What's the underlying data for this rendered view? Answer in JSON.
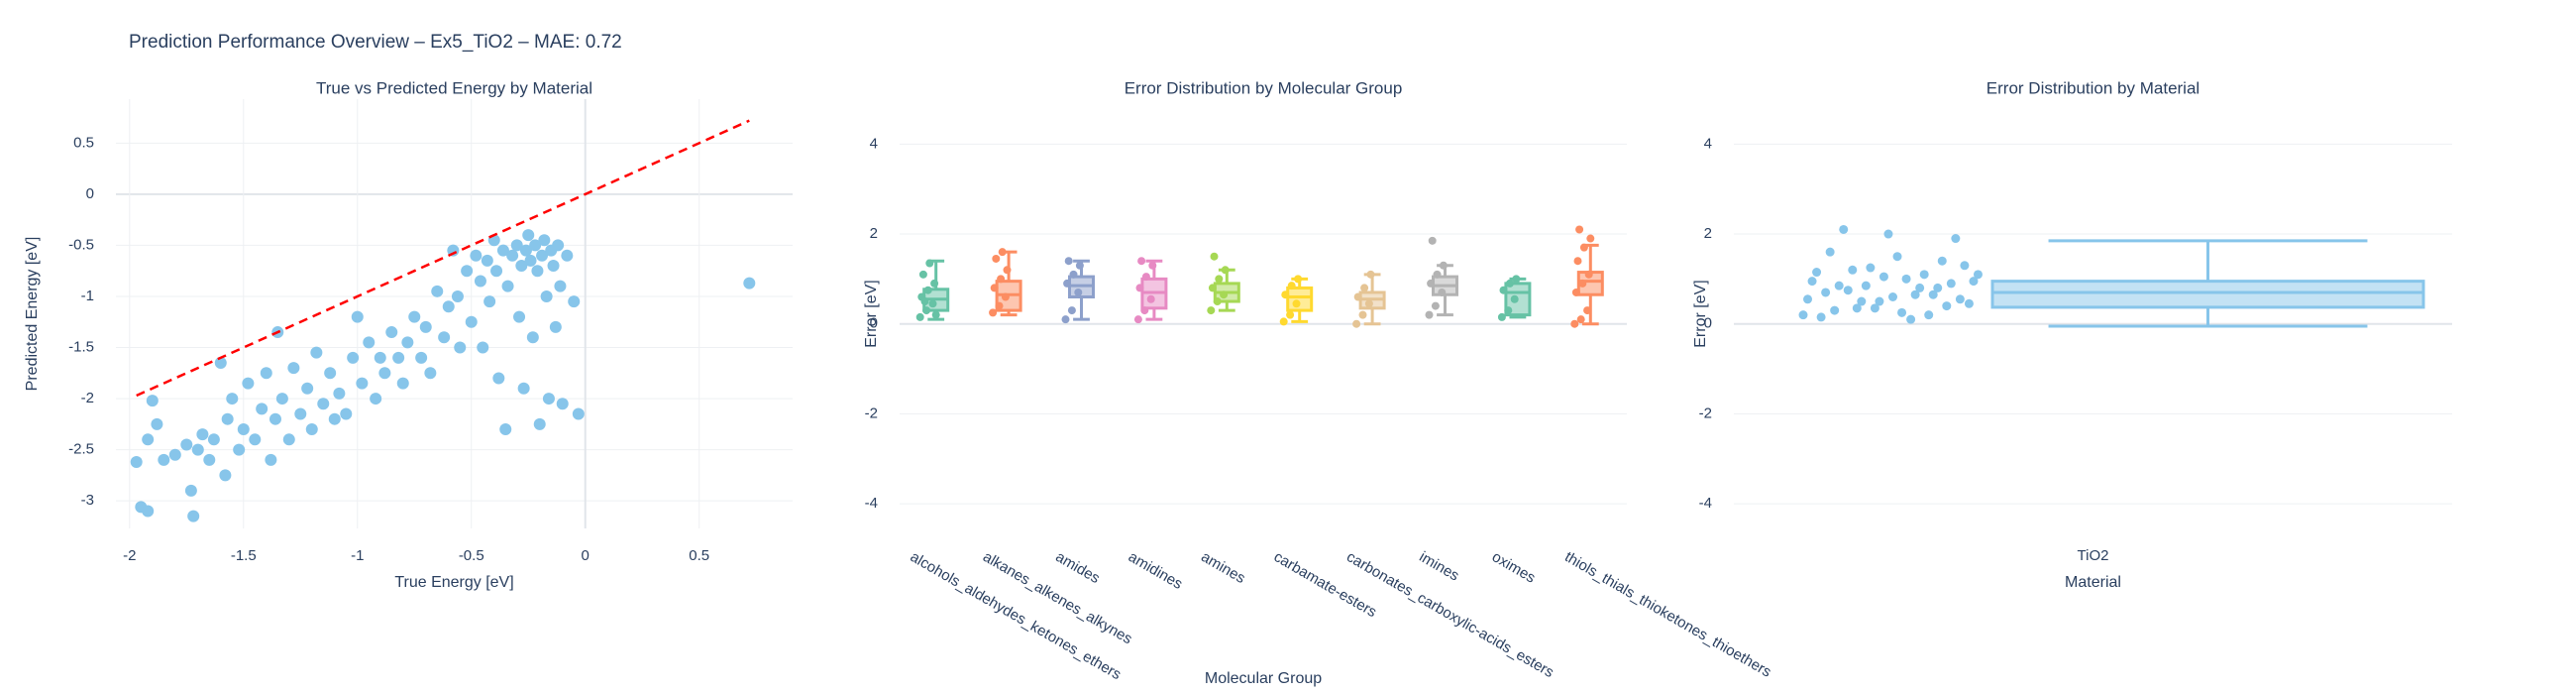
{
  "title": "Prediction Performance Overview – Ex5_TiO2 – MAE: 0.72",
  "chart_data": [
    {
      "type": "scatter",
      "title": "True vs Predicted Energy by Material",
      "x_label": "True Energy [eV]",
      "y_label": "Predicted Energy [eV]",
      "color": "#87c5ea",
      "x": [
        -1.97,
        -1.95,
        -1.92,
        -1.9,
        -1.88,
        -1.92,
        -1.85,
        -1.8,
        -1.75,
        -1.73,
        -1.72,
        -1.7,
        -1.68,
        -1.65,
        -1.63,
        -1.6,
        -1.58,
        -1.57,
        -1.55,
        -1.52,
        -1.5,
        -1.48,
        -1.45,
        -1.42,
        -1.4,
        -1.38,
        -1.36,
        -1.35,
        -1.33,
        -1.3,
        -1.28,
        -1.25,
        -1.22,
        -1.2,
        -1.18,
        -1.15,
        -1.12,
        -1.1,
        -1.08,
        -1.05,
        -1.02,
        -1.0,
        -0.98,
        -0.95,
        -0.92,
        -0.9,
        -0.88,
        -0.85,
        -0.82,
        -0.8,
        -0.78,
        -0.75,
        -0.72,
        -0.7,
        -0.68,
        -0.65,
        -0.62,
        -0.6,
        -0.58,
        -0.56,
        -0.55,
        -0.52,
        -0.5,
        -0.48,
        -0.46,
        -0.45,
        -0.43,
        -0.42,
        -0.4,
        -0.39,
        -0.38,
        -0.36,
        -0.35,
        -0.34,
        -0.32,
        -0.3,
        -0.29,
        -0.28,
        -0.27,
        -0.26,
        -0.25,
        -0.24,
        -0.23,
        -0.22,
        -0.21,
        -0.2,
        -0.19,
        -0.18,
        -0.17,
        -0.16,
        -0.15,
        -0.14,
        -0.13,
        -0.12,
        -0.11,
        -0.1,
        -0.08,
        -0.05,
        -0.03,
        0.72
      ],
      "y": [
        -2.62,
        -3.06,
        -3.1,
        -2.02,
        -2.25,
        -2.4,
        -2.6,
        -2.55,
        -2.45,
        -2.9,
        -3.15,
        -2.5,
        -2.35,
        -2.6,
        -2.4,
        -1.65,
        -2.75,
        -2.2,
        -2.0,
        -2.5,
        -2.3,
        -1.85,
        -2.4,
        -2.1,
        -1.75,
        -2.6,
        -2.2,
        -1.35,
        -2.0,
        -2.4,
        -1.7,
        -2.15,
        -1.9,
        -2.3,
        -1.55,
        -2.05,
        -1.75,
        -2.2,
        -1.95,
        -2.15,
        -1.6,
        -1.2,
        -1.85,
        -1.45,
        -2.0,
        -1.6,
        -1.75,
        -1.35,
        -1.6,
        -1.85,
        -1.45,
        -1.2,
        -1.6,
        -1.3,
        -1.75,
        -0.95,
        -1.4,
        -1.1,
        -0.55,
        -1.0,
        -1.5,
        -0.75,
        -1.25,
        -0.6,
        -0.85,
        -1.5,
        -0.65,
        -1.05,
        -0.45,
        -0.75,
        -1.8,
        -0.55,
        -2.3,
        -0.9,
        -0.6,
        -0.5,
        -1.2,
        -0.7,
        -1.9,
        -0.55,
        -0.4,
        -0.65,
        -1.4,
        -0.5,
        -0.75,
        -2.25,
        -0.6,
        -0.45,
        -1.0,
        -2.0,
        -0.55,
        -0.7,
        -1.3,
        -0.5,
        -0.9,
        -2.05,
        -0.6,
        -1.05,
        -2.15,
        -0.87
      ],
      "reference_line": {
        "x": [
          -1.97,
          0.72
        ],
        "y": [
          -1.97,
          0.72
        ],
        "color": "#ff0000"
      },
      "xlim": [
        -2.06,
        0.91
      ],
      "ylim": [
        -3.27,
        0.93
      ],
      "xticks": [
        -2,
        -1.5,
        -1,
        -0.5,
        0,
        0.5
      ],
      "yticks": [
        0.5,
        0,
        -0.5,
        -1,
        -1.5,
        -2,
        -2.5,
        -3
      ],
      "grid": true
    },
    {
      "type": "box",
      "title": "Error Distribution by Molecular Group",
      "x_label": "Molecular Group",
      "y_label": "Error [eV]",
      "ylim": [
        -4.55,
        5
      ],
      "yticks": [
        4,
        2,
        0,
        -2,
        -4
      ],
      "grid": true,
      "series": [
        {
          "name": "alcohols_aldehydes_ketones_ethers",
          "color": "#66c2a5",
          "lower": 0.1,
          "q1": 0.3,
          "median": 0.55,
          "q3": 0.77,
          "upper": 1.4,
          "points": [
            0.15,
            0.3,
            0.45,
            0.6,
            0.75,
            0.9,
            1.1,
            1.35,
            0.2,
            0.5
          ]
        },
        {
          "name": "alkanes_alkenes_alkynes",
          "color": "#fc8d62",
          "lower": 0.2,
          "q1": 0.3,
          "median": 0.65,
          "q3": 0.95,
          "upper": 1.6,
          "points": [
            0.25,
            0.4,
            0.6,
            0.8,
            1.0,
            1.2,
            1.45,
            1.6
          ]
        },
        {
          "name": "amides",
          "color": "#8da0cb",
          "lower": 0.1,
          "q1": 0.6,
          "median": 0.85,
          "q3": 1.05,
          "upper": 1.4,
          "points": [
            0.1,
            0.3,
            0.7,
            0.9,
            1.1,
            1.3,
            1.4
          ]
        },
        {
          "name": "amidines",
          "color": "#e78ac3",
          "lower": 0.1,
          "q1": 0.35,
          "median": 0.7,
          "q3": 1.0,
          "upper": 1.4,
          "points": [
            0.1,
            0.3,
            0.55,
            0.8,
            1.05,
            1.3,
            1.4
          ]
        },
        {
          "name": "amines",
          "color": "#a6d854",
          "lower": 0.3,
          "q1": 0.5,
          "median": 0.7,
          "q3": 0.9,
          "upper": 1.2,
          "points": [
            0.3,
            0.5,
            0.65,
            0.8,
            1.0,
            1.2,
            1.5
          ]
        },
        {
          "name": "carbamate-esters",
          "color": "#ffd92f",
          "lower": 0.05,
          "q1": 0.3,
          "median": 0.6,
          "q3": 0.8,
          "upper": 1.0,
          "points": [
            0.05,
            0.2,
            0.45,
            0.65,
            0.85,
            1.0
          ]
        },
        {
          "name": "carbonates_carboxylic-acids_esters",
          "color": "#e5c494",
          "lower": 0,
          "q1": 0.35,
          "median": 0.55,
          "q3": 0.7,
          "upper": 1.1,
          "points": [
            0,
            0.2,
            0.45,
            0.6,
            0.8,
            1.1
          ]
        },
        {
          "name": "imines",
          "color": "#b3b3b3",
          "lower": 0.2,
          "q1": 0.65,
          "median": 0.85,
          "q3": 1.05,
          "upper": 1.3,
          "points": [
            0.2,
            0.4,
            0.7,
            0.9,
            1.1,
            1.3,
            1.85
          ]
        },
        {
          "name": "oximes",
          "color": "#66c2a5",
          "lower": 0.15,
          "q1": 0.2,
          "median": 0.7,
          "q3": 0.9,
          "upper": 1.0,
          "points": [
            0.15,
            0.3,
            0.55,
            0.75,
            0.9,
            1.0
          ]
        },
        {
          "name": "thiols_thials_thioketones_thioethers",
          "color": "#fc8d62",
          "lower": 0,
          "q1": 0.65,
          "median": 0.95,
          "q3": 1.15,
          "upper": 1.75,
          "points": [
            0,
            0.1,
            0.3,
            0.7,
            0.9,
            1.1,
            1.4,
            1.7,
            1.9,
            2.1
          ]
        }
      ]
    },
    {
      "type": "box",
      "title": "Error Distribution by Material",
      "x_label": "Material",
      "y_label": "Error [eV]",
      "ylim": [
        -4.55,
        5
      ],
      "yticks": [
        4,
        2,
        0,
        -2,
        -4
      ],
      "grid": true,
      "pointpos": "left",
      "series": [
        {
          "name": "TiO2",
          "color": "#87c5ea",
          "lower": -0.05,
          "q1": 0.37,
          "median": 0.7,
          "q3": 0.95,
          "upper": 1.85,
          "points": [
            0.2,
            0.5,
            0.8,
            1.1,
            0.35,
            0.65,
            0.95,
            1.2,
            0.1,
            0.45,
            0.75,
            1.0,
            1.3,
            2.1,
            0.25,
            0.55,
            0.85,
            1.5,
            1.9,
            0.3,
            0.6,
            0.9,
            1.6,
            2.0,
            0.4,
            0.7,
            1.05,
            1.4,
            0.15,
            0.5,
            0.8,
            1.15,
            0.35,
            0.65,
            0.95,
            1.25,
            0.2,
            0.55,
            0.85,
            1.1
          ]
        }
      ]
    }
  ]
}
